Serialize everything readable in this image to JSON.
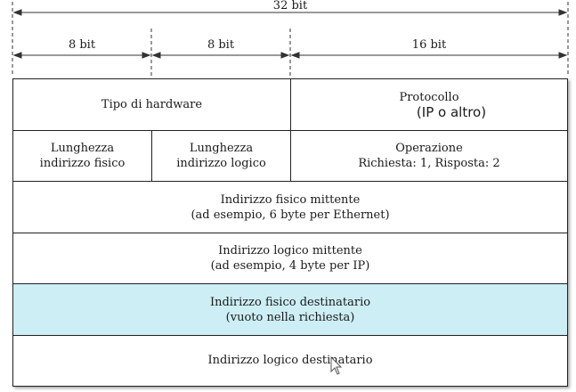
{
  "dimensions": {
    "total": "32 bit",
    "segment_1": "8 bit",
    "segment_2": "8 bit",
    "segment_3": "16 bit"
  },
  "rows": {
    "hardware_type": "Tipo di hardware",
    "protocol": "Protocollo",
    "protocol_note": "(IP  o altro)",
    "hw_length_line1": "Lunghezza",
    "hw_length_line2": "indirizzo fisico",
    "proto_length_line1": "Lunghezza",
    "proto_length_line2": "indirizzo logico",
    "operation_line1": "Operazione",
    "operation_line2": "Richiesta: 1, Risposta: 2",
    "sender_hw_line1": "Indirizzo fisico mittente",
    "sender_hw_line2": "(ad esempio, 6 byte per Ethernet)",
    "sender_proto_line1": "Indirizzo logico mittente",
    "sender_proto_line2": "(ad esempio, 4 byte per IP)",
    "target_hw_line1": "Indirizzo fisico destinatario",
    "target_hw_line2": "(vuoto nella richiesta)",
    "target_proto": "Indirizzo logico destinatario"
  },
  "colors": {
    "highlight": "#cdeef4",
    "border": "#222222"
  },
  "icons": {
    "cursor": "mouse-pointer-icon"
  }
}
